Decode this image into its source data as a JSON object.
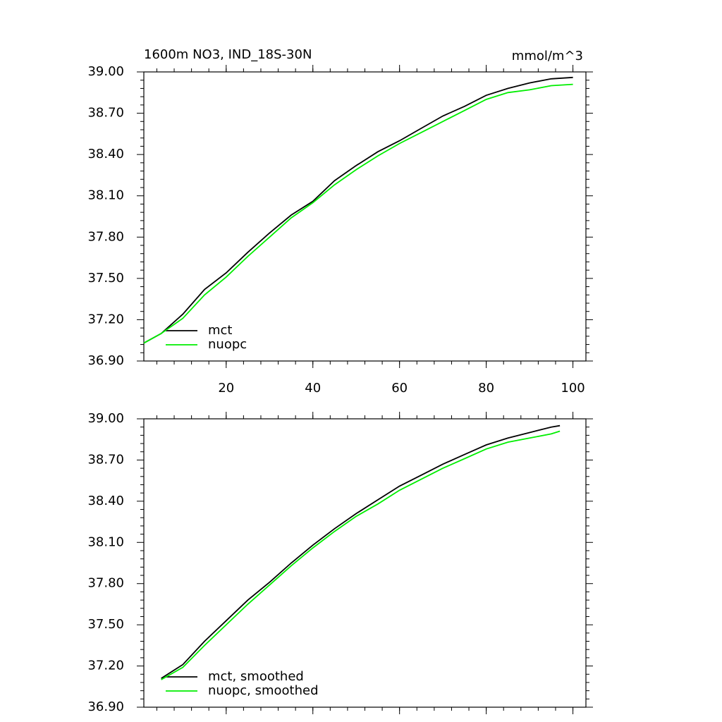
{
  "chart_data": [
    {
      "type": "line",
      "title": "1600m NO3, IND_18S-30N",
      "units": "mmol/m^3",
      "x": [
        1,
        5,
        10,
        15,
        20,
        25,
        30,
        35,
        40,
        45,
        50,
        55,
        60,
        65,
        70,
        75,
        80,
        85,
        90,
        95,
        100
      ],
      "series": [
        {
          "name": "mct",
          "color": "#000000",
          "values": [
            37.03,
            37.1,
            37.24,
            37.42,
            37.54,
            37.69,
            37.83,
            37.96,
            38.06,
            38.21,
            38.32,
            38.42,
            38.5,
            38.59,
            38.68,
            38.75,
            38.83,
            38.88,
            38.92,
            38.95,
            38.96
          ]
        },
        {
          "name": "nuopc",
          "color": "#00ee00",
          "values": [
            37.03,
            37.1,
            37.21,
            37.38,
            37.51,
            37.66,
            37.8,
            37.94,
            38.05,
            38.18,
            38.29,
            38.39,
            38.48,
            38.56,
            38.64,
            38.72,
            38.8,
            38.85,
            38.87,
            38.9,
            38.91
          ]
        }
      ],
      "xlim": [
        1,
        103
      ],
      "xticks": [
        20,
        40,
        60,
        80,
        100
      ],
      "show_xtick_labels": true,
      "ylim": [
        36.9,
        39.0
      ],
      "yticks": [
        {
          "value": 36.9,
          "label": "36.90"
        },
        {
          "value": 37.2,
          "label": "37.20"
        },
        {
          "value": 37.5,
          "label": "37.50"
        },
        {
          "value": 37.8,
          "label": "37.80"
        },
        {
          "value": 38.1,
          "label": "38.10"
        },
        {
          "value": 38.4,
          "label": "38.40"
        },
        {
          "value": 38.7,
          "label": "38.70"
        },
        {
          "value": 39.0,
          "label": "39.00"
        }
      ],
      "legend": "lower left"
    },
    {
      "type": "line",
      "x": [
        5,
        10,
        15,
        20,
        25,
        30,
        35,
        40,
        45,
        50,
        55,
        60,
        65,
        70,
        75,
        80,
        85,
        90,
        95,
        97
      ],
      "series": [
        {
          "name": "mct, smoothed",
          "color": "#000000",
          "values": [
            37.11,
            37.21,
            37.38,
            37.53,
            37.68,
            37.81,
            37.95,
            38.08,
            38.2,
            38.31,
            38.41,
            38.51,
            38.59,
            38.67,
            38.74,
            38.81,
            38.86,
            38.9,
            38.94,
            38.95
          ]
        },
        {
          "name": "nuopc, smoothed",
          "color": "#00ee00",
          "values": [
            37.1,
            37.19,
            37.35,
            37.5,
            37.65,
            37.79,
            37.93,
            38.06,
            38.18,
            38.29,
            38.38,
            38.48,
            38.56,
            38.64,
            38.71,
            38.78,
            38.83,
            38.86,
            38.89,
            38.91
          ]
        }
      ],
      "xlim": [
        1,
        103
      ],
      "xticks": [
        20,
        40,
        60,
        80,
        100
      ],
      "show_xtick_labels": false,
      "ylim": [
        36.9,
        39.0
      ],
      "yticks": [
        {
          "value": 36.9,
          "label": "36.90"
        },
        {
          "value": 37.2,
          "label": "37.20"
        },
        {
          "value": 37.5,
          "label": "37.50"
        },
        {
          "value": 37.8,
          "label": "37.80"
        },
        {
          "value": 38.1,
          "label": "38.10"
        },
        {
          "value": 38.4,
          "label": "38.40"
        },
        {
          "value": 38.7,
          "label": "38.70"
        },
        {
          "value": 39.0,
          "label": "39.00"
        }
      ],
      "legend": "lower left"
    }
  ]
}
